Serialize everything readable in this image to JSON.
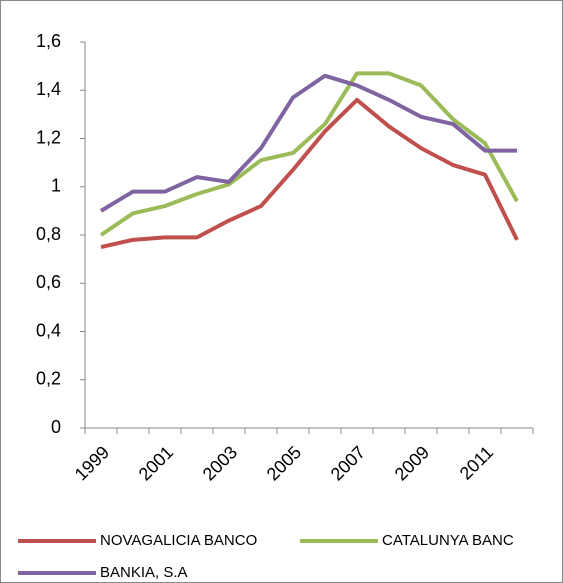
{
  "chart_data": {
    "type": "line",
    "categories": [
      "1999",
      null,
      "2001",
      null,
      "2003",
      null,
      "2005",
      null,
      "2007",
      null,
      "2009",
      null,
      "2011",
      null
    ],
    "series": [
      {
        "name": "NOVAGALICIA BANCO",
        "color": "#c0504d",
        "values": [
          0.75,
          0.78,
          0.79,
          0.79,
          0.86,
          0.92,
          1.07,
          1.23,
          1.36,
          1.25,
          1.16,
          1.09,
          1.05,
          0.78
        ]
      },
      {
        "name": "CATALUNYA BANC",
        "color": "#9bbb59",
        "values": [
          0.8,
          0.89,
          0.92,
          0.97,
          1.01,
          1.11,
          1.14,
          1.26,
          1.47,
          1.47,
          1.42,
          1.28,
          1.18,
          0.94
        ]
      },
      {
        "name": "BANKIA, S.A",
        "color": "#8064a2",
        "values": [
          0.9,
          0.98,
          0.98,
          1.04,
          1.02,
          1.16,
          1.37,
          1.46,
          1.42,
          1.36,
          1.29,
          1.26,
          1.15,
          1.15
        ]
      }
    ],
    "ylim": [
      0,
      1.6
    ],
    "yticks": [
      0,
      {
        "value": 0.2,
        "label": "0,2"
      },
      {
        "value": 0.4,
        "label": "0,4"
      },
      {
        "value": 0.6,
        "label": "0,6"
      },
      {
        "value": 0.8,
        "label": "0,8"
      },
      1,
      {
        "value": 1.2,
        "label": "1,2"
      },
      {
        "value": 1.4,
        "label": "1,4"
      },
      {
        "value": 1.6,
        "label": "1,6"
      }
    ],
    "grid": false,
    "legend": "bottom"
  }
}
